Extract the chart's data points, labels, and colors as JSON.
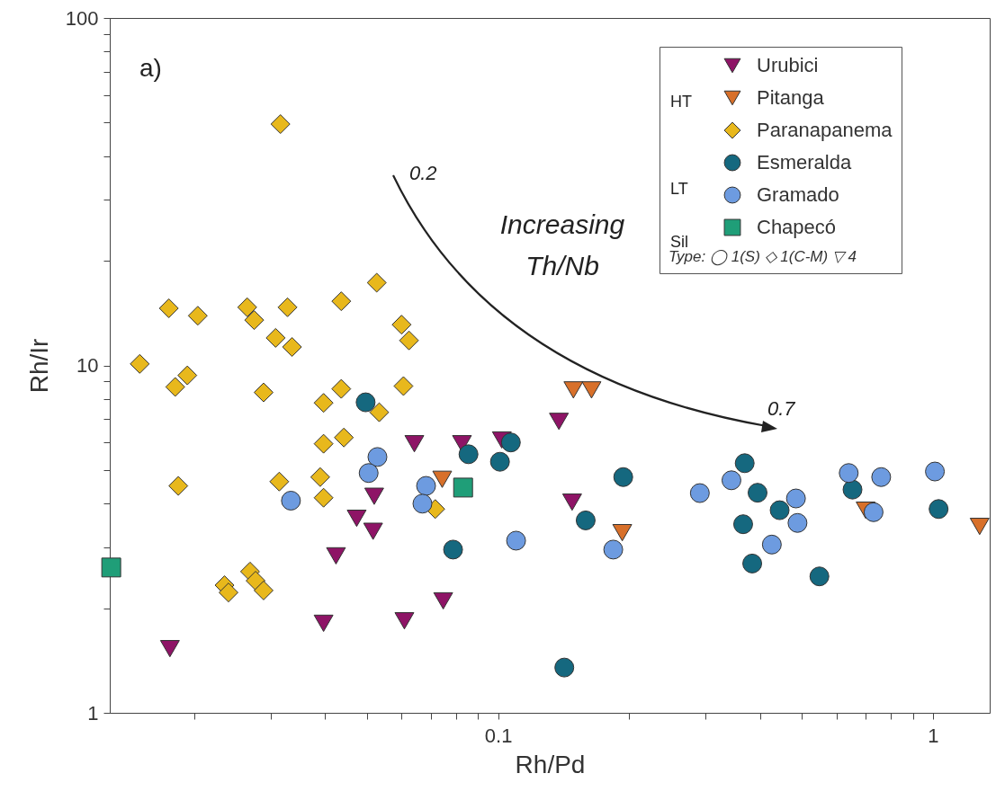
{
  "chart_data": {
    "type": "scatter",
    "xlabel": "Rh/Pd",
    "ylabel": "Rh/Ir",
    "log": "xy",
    "grid": false,
    "legend": "top right",
    "legend_title": "Type: ◯ 1(S) ◇ 1(C-M) ▽ 4",
    "xlim": [
      0.0128,
      1.35
    ],
    "ylim": [
      1,
      100
    ],
    "xticks": [
      {
        "value": 0.02,
        "label": null
      },
      {
        "value": 0.03,
        "label": null
      },
      {
        "value": 0.04,
        "label": null
      },
      {
        "value": 0.05,
        "label": null
      },
      {
        "value": 0.06,
        "label": null
      },
      {
        "value": 0.07,
        "label": null
      },
      {
        "value": 0.08,
        "label": null
      },
      {
        "value": 0.09,
        "label": null
      },
      0.1,
      {
        "value": 0.2,
        "label": null
      },
      {
        "value": 0.3,
        "label": null
      },
      {
        "value": 0.4,
        "label": null
      },
      {
        "value": 0.5,
        "label": null
      },
      {
        "value": 0.6,
        "label": null
      },
      {
        "value": 0.7,
        "label": null
      },
      {
        "value": 0.8,
        "label": null
      },
      {
        "value": 0.9,
        "label": null
      },
      1
    ],
    "yticks": [
      1,
      {
        "value": 2,
        "label": null
      },
      {
        "value": 3,
        "label": null
      },
      {
        "value": 4,
        "label": null
      },
      {
        "value": 5,
        "label": null
      },
      {
        "value": 6,
        "label": null
      },
      {
        "value": 7,
        "label": null
      },
      {
        "value": 8,
        "label": null
      },
      {
        "value": 9,
        "label": null
      },
      10,
      {
        "value": 20,
        "label": null
      },
      {
        "value": 30,
        "label": null
      },
      {
        "value": 40,
        "label": null
      },
      {
        "value": 50,
        "label": null
      },
      {
        "value": 60,
        "label": null
      },
      {
        "value": 70,
        "label": null
      },
      {
        "value": 80,
        "label": null
      },
      {
        "value": 90,
        "label": null
      },
      100
    ],
    "annotations": [
      "a)",
      "0.2",
      "Increasing Th/Nb",
      "0.7",
      "HT",
      "LT",
      "Sil"
    ],
    "series": [
      {
        "name": "Urubici",
        "color": "#8e1466",
        "marker": "triangle-down",
        "x": [
          0.0176,
          0.0424,
          0.0397,
          0.0609,
          0.0748,
          0.0473,
          0.0516,
          0.0519,
          0.0642,
          0.0826,
          0.102,
          0.138,
          0.148
        ],
        "values": [
          1.53,
          2.83,
          1.81,
          1.84,
          2.1,
          3.63,
          3.33,
          4.2,
          5.95,
          5.95,
          6.1,
          6.9,
          4.04
        ]
      },
      {
        "name": "Pitanga",
        "color": "#d8702a",
        "marker": "triangle-down",
        "x": [
          0.0744,
          0.149,
          0.164,
          0.193,
          0.7,
          1.28
        ],
        "values": [
          4.7,
          8.5,
          8.5,
          3.3,
          3.83,
          3.44
        ]
      },
      {
        "name": "Paranapanema",
        "color": "#e8b81c",
        "marker": "diamond",
        "x": [
          0.0316,
          0.0175,
          0.0204,
          0.0265,
          0.0275,
          0.0328,
          0.0308,
          0.0336,
          0.0436,
          0.0526,
          0.06,
          0.0624,
          0.015,
          0.0181,
          0.0193,
          0.0289,
          0.0397,
          0.0436,
          0.0606,
          0.0533,
          0.0397,
          0.0442,
          0.0184,
          0.0314,
          0.039,
          0.0397,
          0.0717,
          0.0235,
          0.024,
          0.0269,
          0.0277,
          0.0289
        ],
        "values": [
          49.5,
          14.6,
          13.9,
          14.7,
          13.5,
          14.7,
          12.0,
          11.3,
          15.3,
          17.3,
          13.1,
          11.8,
          10.1,
          8.67,
          9.36,
          8.36,
          7.8,
          8.56,
          8.72,
          7.33,
          5.95,
          6.2,
          4.5,
          4.63,
          4.77,
          4.16,
          3.86,
          2.33,
          2.22,
          2.55,
          2.4,
          2.25
        ]
      },
      {
        "name": "Esmeralda",
        "color": "#15687f",
        "marker": "circle",
        "x": [
          0.0496,
          0.0788,
          0.0855,
          0.101,
          0.107,
          0.194,
          0.159,
          0.142,
          0.369,
          0.395,
          0.444,
          0.366,
          0.384,
          0.548,
          0.653,
          1.03
        ],
        "values": [
          7.83,
          2.95,
          5.55,
          5.28,
          6.0,
          4.77,
          3.58,
          1.35,
          5.23,
          4.3,
          3.83,
          3.49,
          2.69,
          2.47,
          4.39,
          3.86
        ]
      },
      {
        "name": "Gramado",
        "color": "#6d9be0",
        "marker": "circle",
        "x": [
          0.0334,
          0.0528,
          0.0504,
          0.0683,
          0.067,
          0.11,
          0.184,
          0.291,
          0.344,
          0.484,
          0.488,
          0.426,
          0.64,
          0.76,
          1.01,
          0.73
        ],
        "values": [
          4.08,
          5.45,
          4.9,
          4.5,
          4.0,
          3.13,
          2.95,
          4.29,
          4.67,
          4.14,
          3.52,
          3.05,
          4.9,
          4.77,
          4.95,
          3.78
        ]
      },
      {
        "name": "Chapecó",
        "color": "#1f9e78",
        "marker": "square",
        "x": [
          0.0129,
          0.0831
        ],
        "values": [
          2.62,
          4.45
        ]
      }
    ]
  }
}
